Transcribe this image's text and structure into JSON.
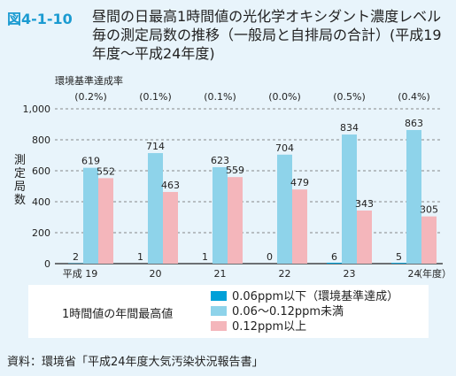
{
  "figure": {
    "number": "図4-1-10",
    "title": "昼間の日最高1時間値の光化学オキシダント濃度レベル毎の測定局数の推移（一般局と自排局の合計）(平成19年度〜平成24年度)"
  },
  "chart_data": {
    "type": "bar",
    "title": "",
    "ylabel": "測定局数",
    "xlabel": "（年度）",
    "ylim": [
      0,
      1000
    ],
    "yticks": [
      "0",
      "200",
      "400",
      "600",
      "800",
      "1,000"
    ],
    "categories": [
      "平成 19",
      "20",
      "21",
      "22",
      "23",
      "24"
    ],
    "series": [
      {
        "name": "0.06ppm以下（環境基準達成）",
        "color": "#00a0d8",
        "values": [
          2,
          1,
          1,
          0,
          6,
          5
        ]
      },
      {
        "name": "0.06〜0.12ppm未満",
        "color": "#8ed3ea",
        "values": [
          619,
          714,
          623,
          704,
          834,
          863
        ]
      },
      {
        "name": "0.12ppm以上",
        "color": "#f4b6bb",
        "values": [
          552,
          463,
          559,
          479,
          343,
          305
        ]
      }
    ],
    "achievement_rate_label": "環境基準達成率",
    "achievement_rates": [
      "(0.2%)",
      "(0.1%)",
      "(0.1%)",
      "(0.0%)",
      "(0.5%)",
      "(0.4%)"
    ],
    "grid": true
  },
  "legend": {
    "caption": "1時間値の年間最高値"
  },
  "source": "資料：環境省「平成24年度大気汚染状況報告書」"
}
